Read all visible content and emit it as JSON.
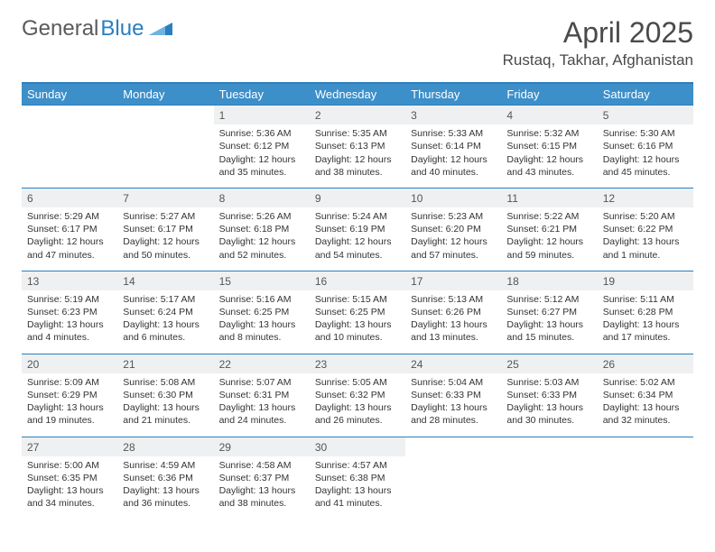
{
  "brand": {
    "name1": "General",
    "name2": "Blue"
  },
  "title": "April 2025",
  "location": "Rustaq, Takhar, Afghanistan",
  "colors": {
    "accent": "#3d8fc9",
    "accent_border": "#2a7fbf",
    "header_text": "#ffffff",
    "daynum_bg": "#eef0f1",
    "text": "#333333"
  },
  "weekdays": [
    "Sunday",
    "Monday",
    "Tuesday",
    "Wednesday",
    "Thursday",
    "Friday",
    "Saturday"
  ],
  "weeks": [
    [
      null,
      null,
      {
        "n": "1",
        "sr": "5:36 AM",
        "ss": "6:12 PM",
        "dl": "12 hours and 35 minutes."
      },
      {
        "n": "2",
        "sr": "5:35 AM",
        "ss": "6:13 PM",
        "dl": "12 hours and 38 minutes."
      },
      {
        "n": "3",
        "sr": "5:33 AM",
        "ss": "6:14 PM",
        "dl": "12 hours and 40 minutes."
      },
      {
        "n": "4",
        "sr": "5:32 AM",
        "ss": "6:15 PM",
        "dl": "12 hours and 43 minutes."
      },
      {
        "n": "5",
        "sr": "5:30 AM",
        "ss": "6:16 PM",
        "dl": "12 hours and 45 minutes."
      }
    ],
    [
      {
        "n": "6",
        "sr": "5:29 AM",
        "ss": "6:17 PM",
        "dl": "12 hours and 47 minutes."
      },
      {
        "n": "7",
        "sr": "5:27 AM",
        "ss": "6:17 PM",
        "dl": "12 hours and 50 minutes."
      },
      {
        "n": "8",
        "sr": "5:26 AM",
        "ss": "6:18 PM",
        "dl": "12 hours and 52 minutes."
      },
      {
        "n": "9",
        "sr": "5:24 AM",
        "ss": "6:19 PM",
        "dl": "12 hours and 54 minutes."
      },
      {
        "n": "10",
        "sr": "5:23 AM",
        "ss": "6:20 PM",
        "dl": "12 hours and 57 minutes."
      },
      {
        "n": "11",
        "sr": "5:22 AM",
        "ss": "6:21 PM",
        "dl": "12 hours and 59 minutes."
      },
      {
        "n": "12",
        "sr": "5:20 AM",
        "ss": "6:22 PM",
        "dl": "13 hours and 1 minute."
      }
    ],
    [
      {
        "n": "13",
        "sr": "5:19 AM",
        "ss": "6:23 PM",
        "dl": "13 hours and 4 minutes."
      },
      {
        "n": "14",
        "sr": "5:17 AM",
        "ss": "6:24 PM",
        "dl": "13 hours and 6 minutes."
      },
      {
        "n": "15",
        "sr": "5:16 AM",
        "ss": "6:25 PM",
        "dl": "13 hours and 8 minutes."
      },
      {
        "n": "16",
        "sr": "5:15 AM",
        "ss": "6:25 PM",
        "dl": "13 hours and 10 minutes."
      },
      {
        "n": "17",
        "sr": "5:13 AM",
        "ss": "6:26 PM",
        "dl": "13 hours and 13 minutes."
      },
      {
        "n": "18",
        "sr": "5:12 AM",
        "ss": "6:27 PM",
        "dl": "13 hours and 15 minutes."
      },
      {
        "n": "19",
        "sr": "5:11 AM",
        "ss": "6:28 PM",
        "dl": "13 hours and 17 minutes."
      }
    ],
    [
      {
        "n": "20",
        "sr": "5:09 AM",
        "ss": "6:29 PM",
        "dl": "13 hours and 19 minutes."
      },
      {
        "n": "21",
        "sr": "5:08 AM",
        "ss": "6:30 PM",
        "dl": "13 hours and 21 minutes."
      },
      {
        "n": "22",
        "sr": "5:07 AM",
        "ss": "6:31 PM",
        "dl": "13 hours and 24 minutes."
      },
      {
        "n": "23",
        "sr": "5:05 AM",
        "ss": "6:32 PM",
        "dl": "13 hours and 26 minutes."
      },
      {
        "n": "24",
        "sr": "5:04 AM",
        "ss": "6:33 PM",
        "dl": "13 hours and 28 minutes."
      },
      {
        "n": "25",
        "sr": "5:03 AM",
        "ss": "6:33 PM",
        "dl": "13 hours and 30 minutes."
      },
      {
        "n": "26",
        "sr": "5:02 AM",
        "ss": "6:34 PM",
        "dl": "13 hours and 32 minutes."
      }
    ],
    [
      {
        "n": "27",
        "sr": "5:00 AM",
        "ss": "6:35 PM",
        "dl": "13 hours and 34 minutes."
      },
      {
        "n": "28",
        "sr": "4:59 AM",
        "ss": "6:36 PM",
        "dl": "13 hours and 36 minutes."
      },
      {
        "n": "29",
        "sr": "4:58 AM",
        "ss": "6:37 PM",
        "dl": "13 hours and 38 minutes."
      },
      {
        "n": "30",
        "sr": "4:57 AM",
        "ss": "6:38 PM",
        "dl": "13 hours and 41 minutes."
      },
      null,
      null,
      null
    ]
  ],
  "labels": {
    "sunrise": "Sunrise:",
    "sunset": "Sunset:",
    "daylight": "Daylight:"
  }
}
